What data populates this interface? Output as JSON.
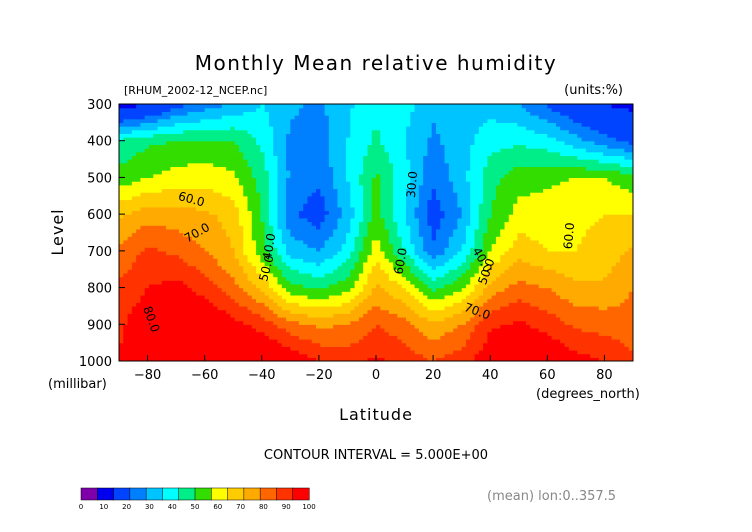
{
  "chart_data": {
    "type": "heatmap",
    "title": "Monthly Mean relative humidity",
    "file_label": "[RHUM_2002-12_NCEP.nc]",
    "units_label": "(units:%)",
    "xlabel": "Latitude",
    "x_units": "(degrees_north)",
    "ylabel": "Level",
    "y_units": "(millibar)",
    "xlim": [
      -90,
      90
    ],
    "ylim": [
      1000,
      300
    ],
    "x_ticks": [
      -80,
      -60,
      -40,
      -20,
      0,
      20,
      40,
      60,
      80
    ],
    "x_tick_labels": [
      "−80",
      "−60",
      "−40",
      "−20",
      "0",
      "20",
      "40",
      "60",
      "80"
    ],
    "y_ticks": [
      300,
      400,
      500,
      600,
      700,
      800,
      900,
      1000
    ],
    "contour_interval_text": "CONTOUR INTERVAL = 5.000E+00",
    "footer_text": "(mean) lon:0..357.5",
    "colorbar": {
      "ticks": [
        "0",
        "10",
        "20",
        "30",
        "40",
        "50",
        "60",
        "70",
        "80",
        "90",
        "100"
      ],
      "colors": [
        "#7f00aa",
        "#0000ee",
        "#0044ff",
        "#0080ff",
        "#00c4ff",
        "#00ffff",
        "#00ee88",
        "#33dd00",
        "#ffff00",
        "#ffcc00",
        "#ffaa00",
        "#ff6600",
        "#ff3300",
        "#ff0000"
      ]
    },
    "contour_labels": [
      "60.0",
      "70.0",
      "80.0",
      "40.0",
      "50.0",
      "30.0",
      "60.0",
      "40.0",
      "50.0",
      "70.0",
      "60.0"
    ],
    "lat": [
      -90,
      -80,
      -70,
      -60,
      -50,
      -40,
      -30,
      -20,
      -10,
      0,
      10,
      20,
      30,
      40,
      50,
      60,
      70,
      80,
      90
    ],
    "lev": [
      1000,
      900,
      800,
      700,
      600,
      500,
      400,
      300
    ],
    "rh": [
      [
        80,
        88,
        92,
        93,
        90,
        88,
        84,
        80,
        78,
        81,
        78,
        75,
        78,
        84,
        88,
        86,
        82,
        80,
        76
      ],
      [
        79,
        84,
        87,
        86,
        82,
        78,
        72,
        69,
        70,
        75,
        72,
        66,
        70,
        79,
        81,
        78,
        74,
        73,
        72
      ],
      [
        76,
        80,
        82,
        78,
        72,
        64,
        52,
        49,
        53,
        66,
        60,
        49,
        54,
        67,
        72,
        70,
        66,
        66,
        70
      ],
      [
        71,
        76,
        74,
        70,
        65,
        52,
        38,
        35,
        42,
        58,
        45,
        31,
        40,
        55,
        63,
        60,
        60,
        62,
        66
      ],
      [
        64,
        68,
        67,
        66,
        63,
        50,
        31,
        27,
        37,
        52,
        40,
        27,
        35,
        50,
        57,
        57,
        59,
        60,
        60
      ],
      [
        52,
        55,
        57,
        58,
        56,
        48,
        34,
        31,
        40,
        51,
        42,
        31,
        38,
        48,
        53,
        54,
        55,
        55,
        52
      ],
      [
        46,
        49,
        50,
        51,
        50,
        44,
        34,
        32,
        40,
        46,
        40,
        34,
        38,
        43,
        44,
        42,
        37,
        32,
        28
      ],
      [
        16,
        20,
        28,
        32,
        36,
        40,
        36,
        34,
        39,
        44,
        42,
        36,
        37,
        38,
        35,
        29,
        24,
        20,
        18
      ]
    ]
  }
}
